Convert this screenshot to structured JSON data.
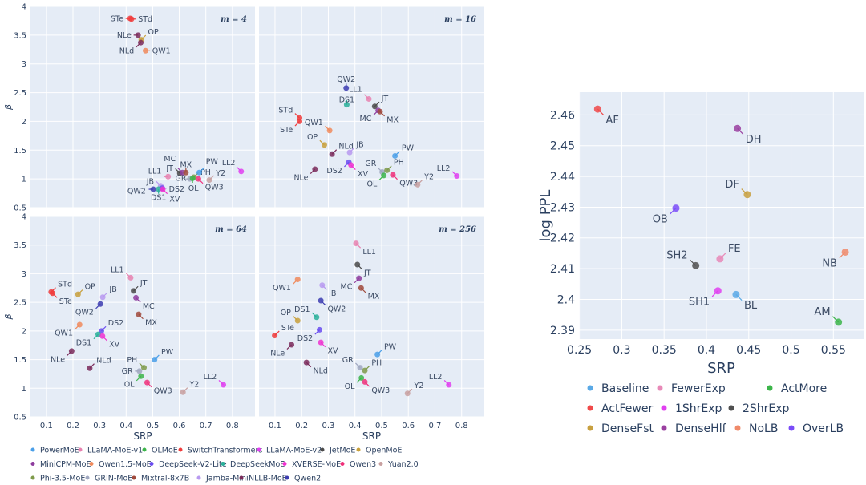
{
  "chart_data": [
    {
      "type": "scatter",
      "title": "",
      "xlabel": "SRP",
      "ylabel": "β",
      "xlim": [
        0.04,
        0.885
      ],
      "ylim": [
        0.5,
        4
      ],
      "xticks": [
        "0.1",
        "0.2",
        "0.3",
        "0.4",
        "0.5",
        "0.6",
        "0.7",
        "0.8"
      ],
      "yticks": [
        "0.5",
        "1",
        "1.5",
        "2",
        "2.5",
        "3",
        "3.5",
        "4"
      ],
      "grid": true,
      "legend_position": "bottom",
      "series": [
        {
          "name": "PowerMoE",
          "color": "#4a9fe8"
        },
        {
          "name": "LLaMA-MoE-v1",
          "color": "#e882b0"
        },
        {
          "name": "OLMoE",
          "color": "#3cb54a"
        },
        {
          "name": "SwitchTransformers",
          "color": "#f03c3c"
        },
        {
          "name": "LLaMA-MoE-v2",
          "color": "#e040f0"
        },
        {
          "name": "JetMoE",
          "color": "#4a4a4a"
        },
        {
          "name": "OpenMoE",
          "color": "#c8a03c"
        },
        {
          "name": "MiniCPM-MoE",
          "color": "#8e3c9e"
        },
        {
          "name": "Qwen1.5-MoE",
          "color": "#f08a5c"
        },
        {
          "name": "DeepSeek-V2-Lite",
          "color": "#6a4cf0"
        },
        {
          "name": "DeepSeekMoE",
          "color": "#2ab09a"
        },
        {
          "name": "XVERSE-MoE",
          "color": "#f030d0"
        },
        {
          "name": "Qwen3",
          "color": "#f0307a"
        },
        {
          "name": "Yuan2.0",
          "color": "#c8a0a0"
        },
        {
          "name": "Phi-3.5-MoE",
          "color": "#7e9a4a"
        },
        {
          "name": "GRIN-MoE",
          "color": "#a0a8c0"
        },
        {
          "name": "Mixtral-8x7B",
          "color": "#a04a3c"
        },
        {
          "name": "Jamba-Mini",
          "color": "#b89af0"
        },
        {
          "name": "NLLB-MoE",
          "color": "#7a2a5a"
        },
        {
          "name": "Qwen2",
          "color": "#3c3cb0"
        }
      ],
      "label_series": {
        "PW": 0,
        "LL1": 1,
        "OL": 2,
        "STe": 3,
        "STd": 3,
        "LL2": 4,
        "JT": 5,
        "OP": 6,
        "MC": 7,
        "QW1": 8,
        "DS2": 9,
        "DS1": 10,
        "XV": 11,
        "QW3": 12,
        "Y2": 13,
        "PH": 14,
        "GR": 15,
        "MX": 16,
        "JB": 17,
        "NLe": 18,
        "NLd": 18,
        "QW2": 19
      },
      "panels": [
        {
          "annotation": "m = 4",
          "points": [
            [
              "STe",
              0.415,
              3.79,
              "l"
            ],
            [
              "STd",
              0.42,
              3.78,
              "r"
            ],
            [
              "NLe",
              0.445,
              3.5,
              "l"
            ],
            [
              "OP",
              0.457,
              3.42,
              "tr"
            ],
            [
              "NLd",
              0.455,
              3.37,
              "bl"
            ],
            [
              "QW1",
              0.473,
              3.23,
              "r"
            ],
            [
              "LL1",
              0.558,
              1.04,
              "l"
            ],
            [
              "JT",
              0.602,
              1.1,
              "tl"
            ],
            [
              "MC",
              0.612,
              1.11,
              "tl"
            ],
            [
              "MX",
              0.625,
              1.11,
              "t"
            ],
            [
              "PH",
              0.655,
              1.03,
              "tr"
            ],
            [
              "GR",
              0.64,
              1.0,
              "l"
            ],
            [
              "OL",
              0.65,
              1.01,
              "b"
            ],
            [
              "PW",
              0.675,
              1.11,
              "tr"
            ],
            [
              "QW3",
              0.672,
              1.0,
              "br"
            ],
            [
              "Y2",
              0.713,
              0.98,
              "tr"
            ],
            [
              "LL2",
              0.833,
              1.13,
              "tl"
            ],
            [
              "JB",
              0.53,
              0.88,
              "tl"
            ],
            [
              "QW2",
              0.502,
              0.82,
              "l"
            ],
            [
              "DS1",
              0.522,
              0.82,
              "b"
            ],
            [
              "DS2",
              0.536,
              0.84,
              "r"
            ],
            [
              "XV",
              0.538,
              0.82,
              "br"
            ]
          ]
        },
        {
          "annotation": "m = 16",
          "points": [
            [
              "QW2",
              0.367,
              2.58,
              "t"
            ],
            [
              "LL1",
              0.452,
              2.39,
              "tl"
            ],
            [
              "DS1",
              0.369,
              2.29,
              "t"
            ],
            [
              "JT",
              0.474,
              2.26,
              "tr"
            ],
            [
              "MC",
              0.487,
              2.19,
              "bl"
            ],
            [
              "MX",
              0.494,
              2.17,
              "br"
            ],
            [
              "STd",
              0.192,
              2.06,
              "tl"
            ],
            [
              "STe",
              0.192,
              2.0,
              "bl"
            ],
            [
              "QW1",
              0.305,
              1.84,
              "tl"
            ],
            [
              "OP",
              0.285,
              1.59,
              "tl"
            ],
            [
              "NLd",
              0.314,
              1.43,
              "tr"
            ],
            [
              "JB",
              0.38,
              1.46,
              "tr"
            ],
            [
              "PW",
              0.55,
              1.4,
              "tr"
            ],
            [
              "DS2",
              0.377,
              1.29,
              "bl"
            ],
            [
              "XV",
              0.385,
              1.24,
              "br"
            ],
            [
              "NLe",
              0.25,
              1.17,
              "bl"
            ],
            [
              "GR",
              0.502,
              1.12,
              "tl"
            ],
            [
              "PH",
              0.52,
              1.15,
              "tr"
            ],
            [
              "OL",
              0.508,
              1.06,
              "bl"
            ],
            [
              "QW3",
              0.542,
              1.07,
              "br"
            ],
            [
              "Y2",
              0.635,
              0.9,
              "tr"
            ],
            [
              "LL2",
              0.782,
              1.05,
              "tl"
            ]
          ]
        },
        {
          "annotation": "m = 64",
          "points": [
            [
              "STd",
              0.118,
              2.68,
              "tr"
            ],
            [
              "STe",
              0.123,
              2.66,
              "br"
            ],
            [
              "OP",
              0.219,
              2.64,
              "tr"
            ],
            [
              "JB",
              0.312,
              2.59,
              "tr"
            ],
            [
              "QW2",
              0.303,
              2.47,
              "bl"
            ],
            [
              "LL1",
              0.417,
              2.93,
              "tl"
            ],
            [
              "JT",
              0.428,
              2.7,
              "tr"
            ],
            [
              "MC",
              0.437,
              2.58,
              "br"
            ],
            [
              "MX",
              0.447,
              2.29,
              "br"
            ],
            [
              "QW1",
              0.225,
              2.11,
              "bl"
            ],
            [
              "DS2",
              0.307,
              2.0,
              "tr"
            ],
            [
              "DS1",
              0.295,
              1.94,
              "bl"
            ],
            [
              "XV",
              0.311,
              1.91,
              "br"
            ],
            [
              "NLe",
              0.195,
              1.65,
              "bl"
            ],
            [
              "NLd",
              0.263,
              1.35,
              "tr"
            ],
            [
              "PW",
              0.507,
              1.5,
              "tr"
            ],
            [
              "PH",
              0.467,
              1.36,
              "tl"
            ],
            [
              "GR",
              0.45,
              1.3,
              "l"
            ],
            [
              "OL",
              0.456,
              1.21,
              "bl"
            ],
            [
              "QW3",
              0.479,
              1.1,
              "br"
            ],
            [
              "Y2",
              0.614,
              0.93,
              "tr"
            ],
            [
              "LL2",
              0.766,
              1.06,
              "tl"
            ]
          ]
        },
        {
          "annotation": "m = 256",
          "points": [
            [
              "LL1",
              0.404,
              3.53,
              "br"
            ],
            [
              "JT",
              0.409,
              3.16,
              "br"
            ],
            [
              "MC",
              0.415,
              2.92,
              "bl"
            ],
            [
              "QW1",
              0.185,
              2.9,
              "bl"
            ],
            [
              "JB",
              0.277,
              2.8,
              "br"
            ],
            [
              "MX",
              0.423,
              2.75,
              "br"
            ],
            [
              "QW2",
              0.272,
              2.53,
              "br"
            ],
            [
              "DS1",
              0.256,
              2.24,
              "tl"
            ],
            [
              "OP",
              0.185,
              2.18,
              "tl"
            ],
            [
              "DS2",
              0.267,
              2.02,
              "bl"
            ],
            [
              "STe",
              0.099,
              1.92,
              "tr"
            ],
            [
              "XV",
              0.272,
              1.8,
              "br"
            ],
            [
              "NLe",
              0.162,
              1.76,
              "bl"
            ],
            [
              "PW",
              0.484,
              1.59,
              "tr"
            ],
            [
              "NLd",
              0.218,
              1.45,
              "br"
            ],
            [
              "GR",
              0.419,
              1.36,
              "tl"
            ],
            [
              "PH",
              0.437,
              1.31,
              "tr"
            ],
            [
              "OL",
              0.424,
              1.18,
              "bl"
            ],
            [
              "QW3",
              0.437,
              1.11,
              "br"
            ],
            [
              "Y2",
              0.597,
              0.91,
              "tr"
            ],
            [
              "LL2",
              0.752,
              1.06,
              "tl"
            ]
          ]
        }
      ]
    },
    {
      "type": "scatter",
      "title": "",
      "xlabel": "SRP",
      "ylabel": "log PPL",
      "xlim": [
        0.2494,
        0.5857
      ],
      "ylim": [
        2.3871,
        2.4674
      ],
      "xticks": [
        "0.25",
        "0.3",
        "0.35",
        "0.4",
        "0.45",
        "0.5",
        "0.55"
      ],
      "yticks": [
        "2.39",
        "2.4",
        "2.41",
        "2.42",
        "2.43",
        "2.44",
        "2.45",
        "2.46"
      ],
      "grid": true,
      "legend_position": "bottom",
      "series": [
        {
          "name": "Baseline",
          "label": "BL",
          "color": "#5aa9e6",
          "x": 0.435,
          "y": 2.4016,
          "pos": "br"
        },
        {
          "name": "FewerExp",
          "label": "FE",
          "color": "#e88ab8",
          "x": 0.416,
          "y": 2.4132,
          "pos": "tr"
        },
        {
          "name": "ActMore",
          "label": "AM",
          "color": "#3cb54a",
          "x": 0.556,
          "y": 2.3926,
          "pos": "tl"
        },
        {
          "name": "ActFewer",
          "label": "AF",
          "color": "#f04a4a",
          "x": 0.2715,
          "y": 2.4619,
          "pos": "br"
        },
        {
          "name": "1ShrExp",
          "label": "SH1",
          "color": "#e040f0",
          "x": 0.4136,
          "y": 2.4028,
          "pos": "bl"
        },
        {
          "name": "2ShrExp",
          "label": "SH2",
          "color": "#505050",
          "x": 0.3874,
          "y": 2.411,
          "pos": "tl"
        },
        {
          "name": "DenseFst",
          "label": "DF",
          "color": "#c8a040",
          "x": 0.4483,
          "y": 2.4341,
          "pos": "tl"
        },
        {
          "name": "DenseHlf",
          "label": "DH",
          "color": "#9a40a0",
          "x": 0.4366,
          "y": 2.4556,
          "pos": "br"
        },
        {
          "name": "NoLB",
          "label": "NB",
          "color": "#f08a6a",
          "x": 0.564,
          "y": 2.4154,
          "pos": "bl"
        },
        {
          "name": "OverLB",
          "label": "OB",
          "color": "#7a4cf8",
          "x": 0.364,
          "y": 2.4297,
          "pos": "bl"
        }
      ]
    }
  ]
}
